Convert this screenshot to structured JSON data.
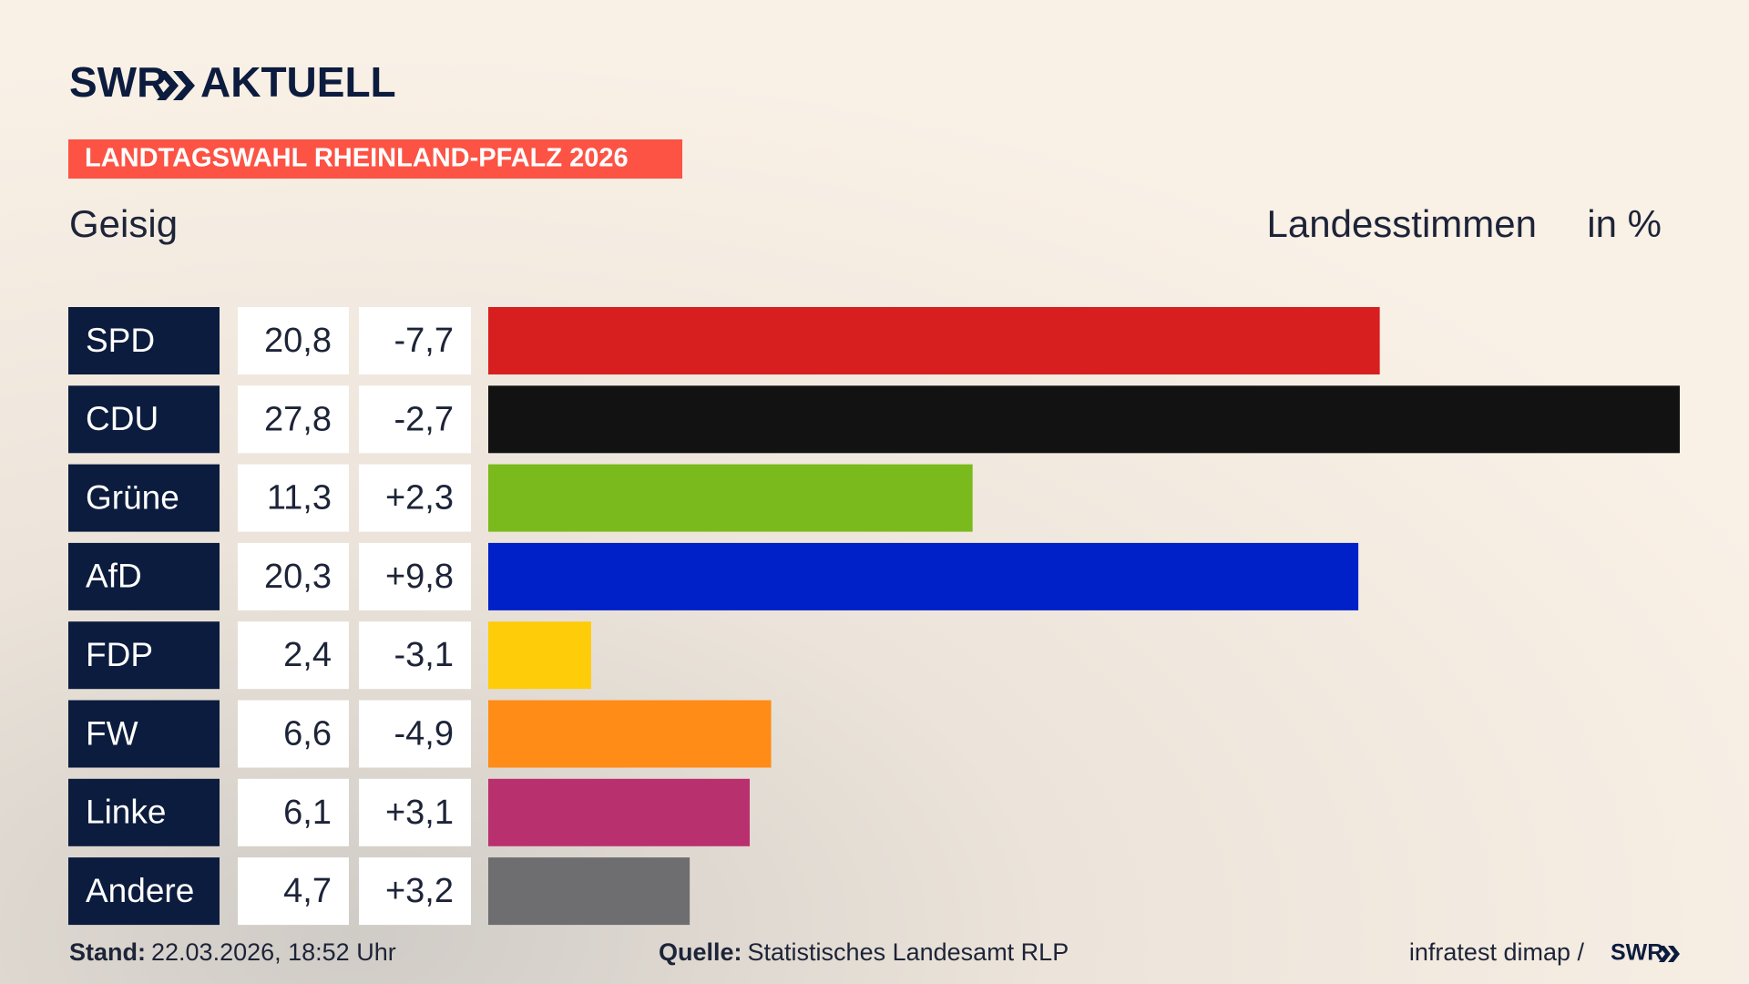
{
  "chart_data": {
    "type": "bar",
    "brand": [
      "SWR",
      "AKTUELL"
    ],
    "title": "LANDTAGSWAHL RHEINLAND-PFALZ 2026",
    "subtitle": "Geisig",
    "measure": "Landesstimmen",
    "unit": "in %",
    "categories": [
      "SPD",
      "CDU",
      "Grüne",
      "AfD",
      "FDP",
      "FW",
      "Linke",
      "Andere"
    ],
    "values": [
      20.8,
      27.8,
      11.3,
      20.3,
      2.4,
      6.6,
      6.1,
      4.7
    ],
    "value_labels": [
      "20,8",
      "27,8",
      "11,3",
      "20,3",
      "2,4",
      "6,6",
      "6,1",
      "4,7"
    ],
    "colors": [
      "#d81f1f",
      "#121212",
      "#7aba1c",
      "#0020c8",
      "#ffcc0a",
      "#ff8c16",
      "#b9306f",
      "#6e6e70"
    ],
    "changes": {
      "values": [
        -7.7,
        -2.7,
        2.3,
        9.8,
        -3.1,
        -4.9,
        3.1,
        3.2
      ],
      "value_labels": [
        "-7,7",
        "-2,7",
        "+2,3",
        "+9,8",
        "-3,1",
        "-4,9",
        "+3,1",
        "+3,2"
      ]
    },
    "footer": {
      "date_label": "Stand:",
      "date": "22.03.2026, 18:52 Uhr",
      "source_label": "Quelle:",
      "source": "Statistisches Landesamt RLP",
      "credit": "infratest dimap /",
      "credit_brand": "SWR"
    }
  }
}
